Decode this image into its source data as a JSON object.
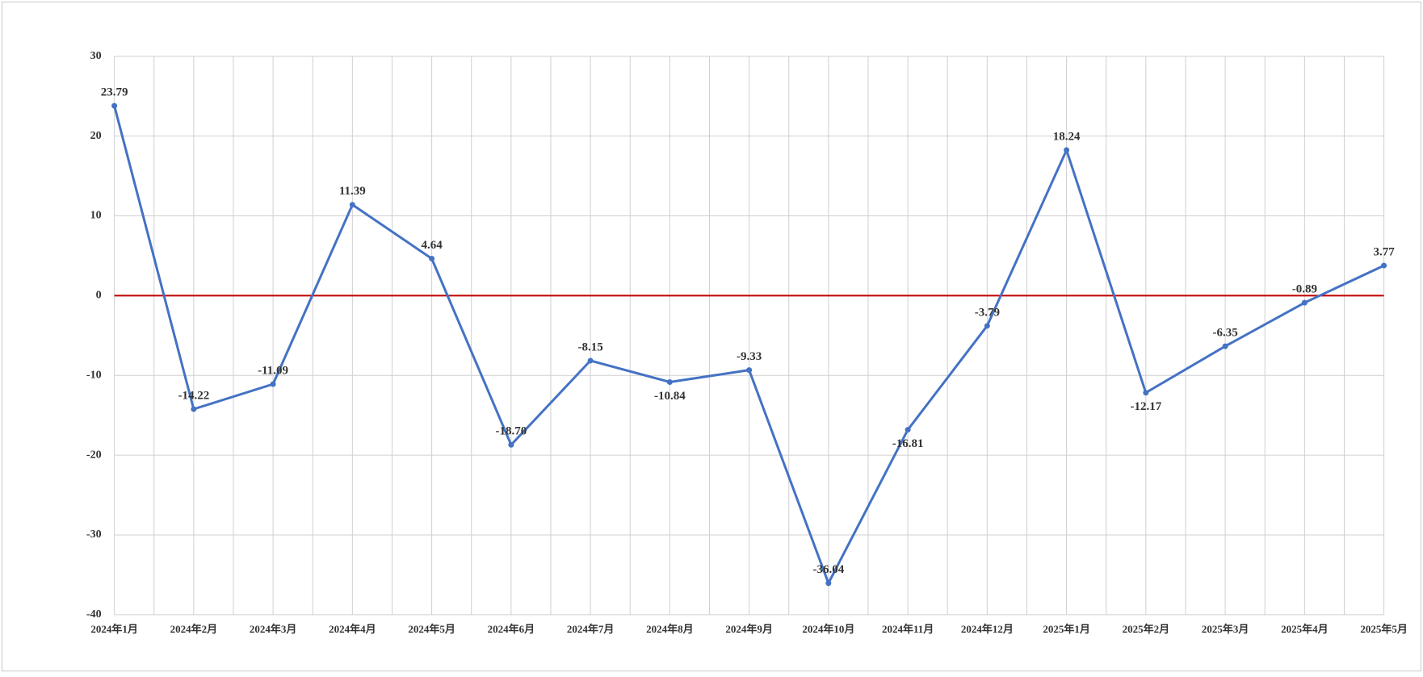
{
  "chart_data": {
    "type": "line",
    "categories": [
      "2024年1月",
      "2024年2月",
      "2024年3月",
      "2024年4月",
      "2024年5月",
      "2024年6月",
      "2024年7月",
      "2024年8月",
      "2024年9月",
      "2024年10月",
      "2024年11月",
      "2024年12月",
      "2025年1月",
      "2025年2月",
      "2025年3月",
      "2025年4月",
      "2025年5月"
    ],
    "series": [
      {
        "color": "#4472c4",
        "values": [
          23.79,
          -14.22,
          -11.09,
          11.39,
          4.64,
          -18.7,
          -8.15,
          -10.84,
          -9.33,
          -36.04,
          -16.81,
          -3.79,
          18.24,
          -12.17,
          -6.35,
          -0.89,
          3.77
        ],
        "value_labels": [
          "23.79",
          "-14.22",
          "-11.09",
          "11.39",
          "4.64",
          "-18.70",
          "-8.15",
          "-10.84",
          "-9.33",
          "-36.04",
          "-16.81",
          "-3.79",
          "18.24",
          "-12.17",
          "-6.35",
          "-0.89",
          "3.77"
        ]
      }
    ],
    "ylim": [
      -40,
      30
    ],
    "yticks": [
      -40,
      -30,
      -20,
      -10,
      0,
      10,
      20,
      30
    ],
    "grid": true,
    "zero_line_color": "#c00000"
  }
}
